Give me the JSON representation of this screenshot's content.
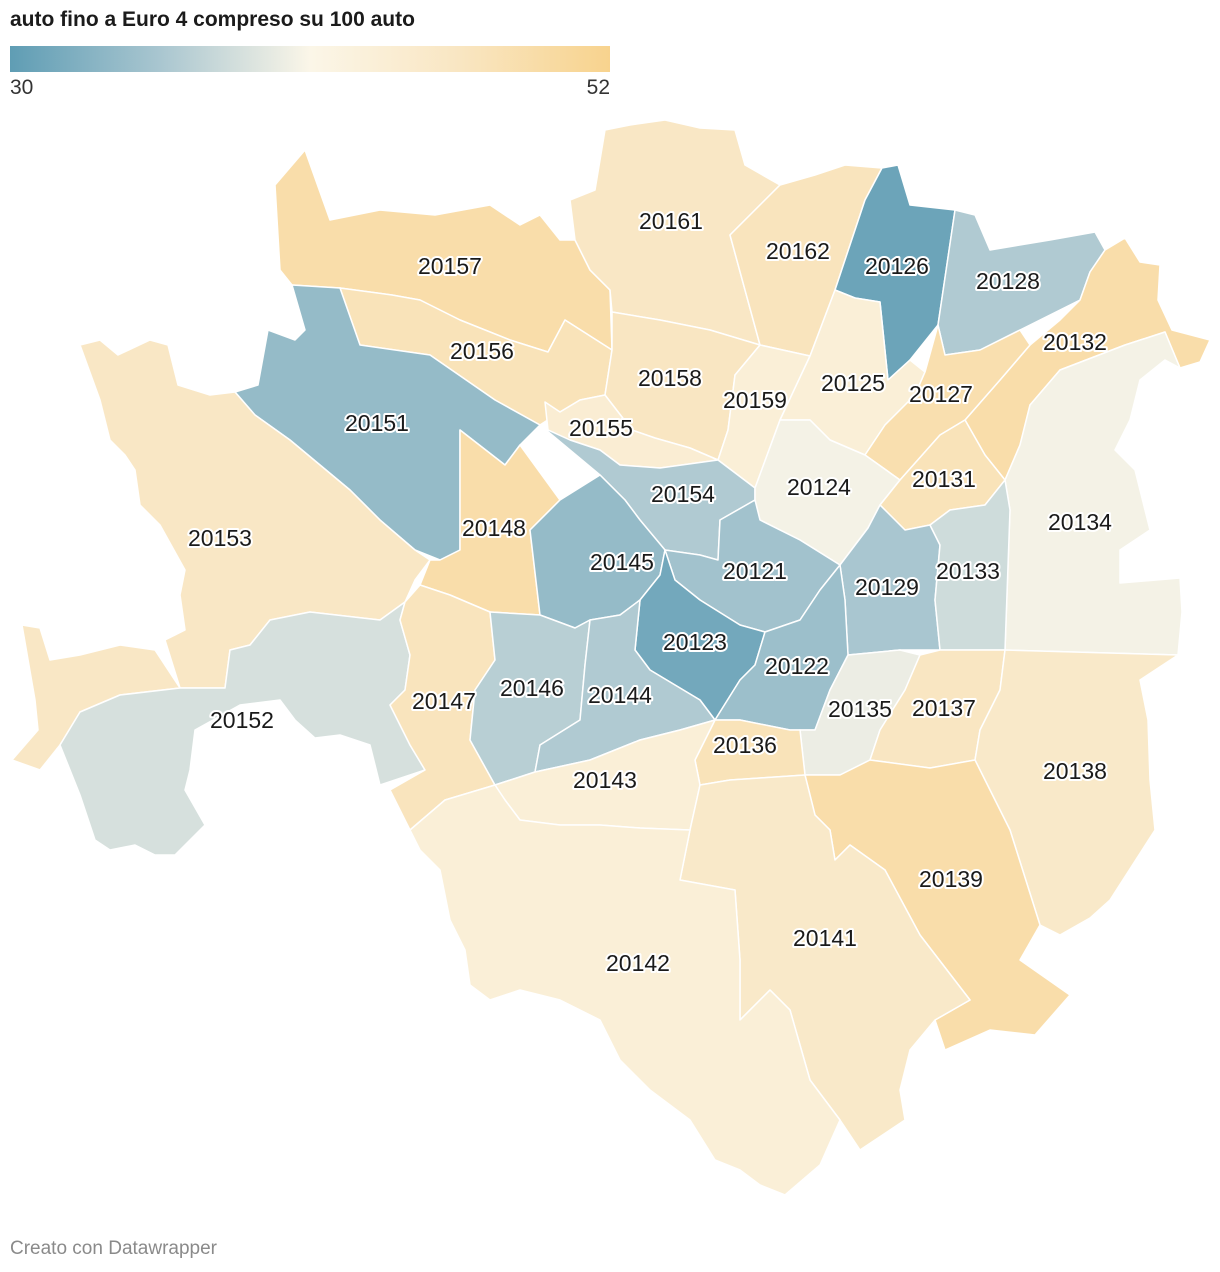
{
  "header": {
    "title": "auto fino a Euro 4 compreso su 100 auto"
  },
  "legend": {
    "min_label": "30",
    "max_label": "52",
    "min": 30,
    "max": 52,
    "colors": [
      "#5f9db4",
      "#a9c6d0",
      "#fbf6e8",
      "#f9e6c2",
      "#f8d38e"
    ]
  },
  "zones": [
    {
      "code": "20157",
      "value": 49
    },
    {
      "code": "20161",
      "value": 46
    },
    {
      "code": "20162",
      "value": 47
    },
    {
      "code": "20126",
      "value": 31
    },
    {
      "code": "20128",
      "value": 36
    },
    {
      "code": "20132",
      "value": 49
    },
    {
      "code": "20156",
      "value": 47.5
    },
    {
      "code": "20158",
      "value": 46.5
    },
    {
      "code": "20159",
      "value": 43.5
    },
    {
      "code": "20125",
      "value": 43.5
    },
    {
      "code": "20127",
      "value": 48.5
    },
    {
      "code": "20151",
      "value": 34
    },
    {
      "code": "20155",
      "value": 44
    },
    {
      "code": "20154",
      "value": 36
    },
    {
      "code": "20124",
      "value": 40.5
    },
    {
      "code": "20131",
      "value": 47.5
    },
    {
      "code": "20134",
      "value": 40.5
    },
    {
      "code": "20153",
      "value": 46
    },
    {
      "code": "20148",
      "value": 49
    },
    {
      "code": "20145",
      "value": 34
    },
    {
      "code": "20121",
      "value": 35
    },
    {
      "code": "20129",
      "value": 35.5
    },
    {
      "code": "20133",
      "value": 38
    },
    {
      "code": "20123",
      "value": 31.5
    },
    {
      "code": "20122",
      "value": 34.5
    },
    {
      "code": "20152",
      "value": 38.5
    },
    {
      "code": "20147",
      "value": 47
    },
    {
      "code": "20146",
      "value": 36.5
    },
    {
      "code": "20144",
      "value": 36
    },
    {
      "code": "20135",
      "value": 40
    },
    {
      "code": "20137",
      "value": 46.5
    },
    {
      "code": "20136",
      "value": 47.5
    },
    {
      "code": "20143",
      "value": 43.5
    },
    {
      "code": "20138",
      "value": 45.5
    },
    {
      "code": "20139",
      "value": 49
    },
    {
      "code": "20141",
      "value": 45.5
    },
    {
      "code": "20142",
      "value": 43.5
    }
  ],
  "footer": {
    "credit": "Creato con Datawrapper"
  }
}
